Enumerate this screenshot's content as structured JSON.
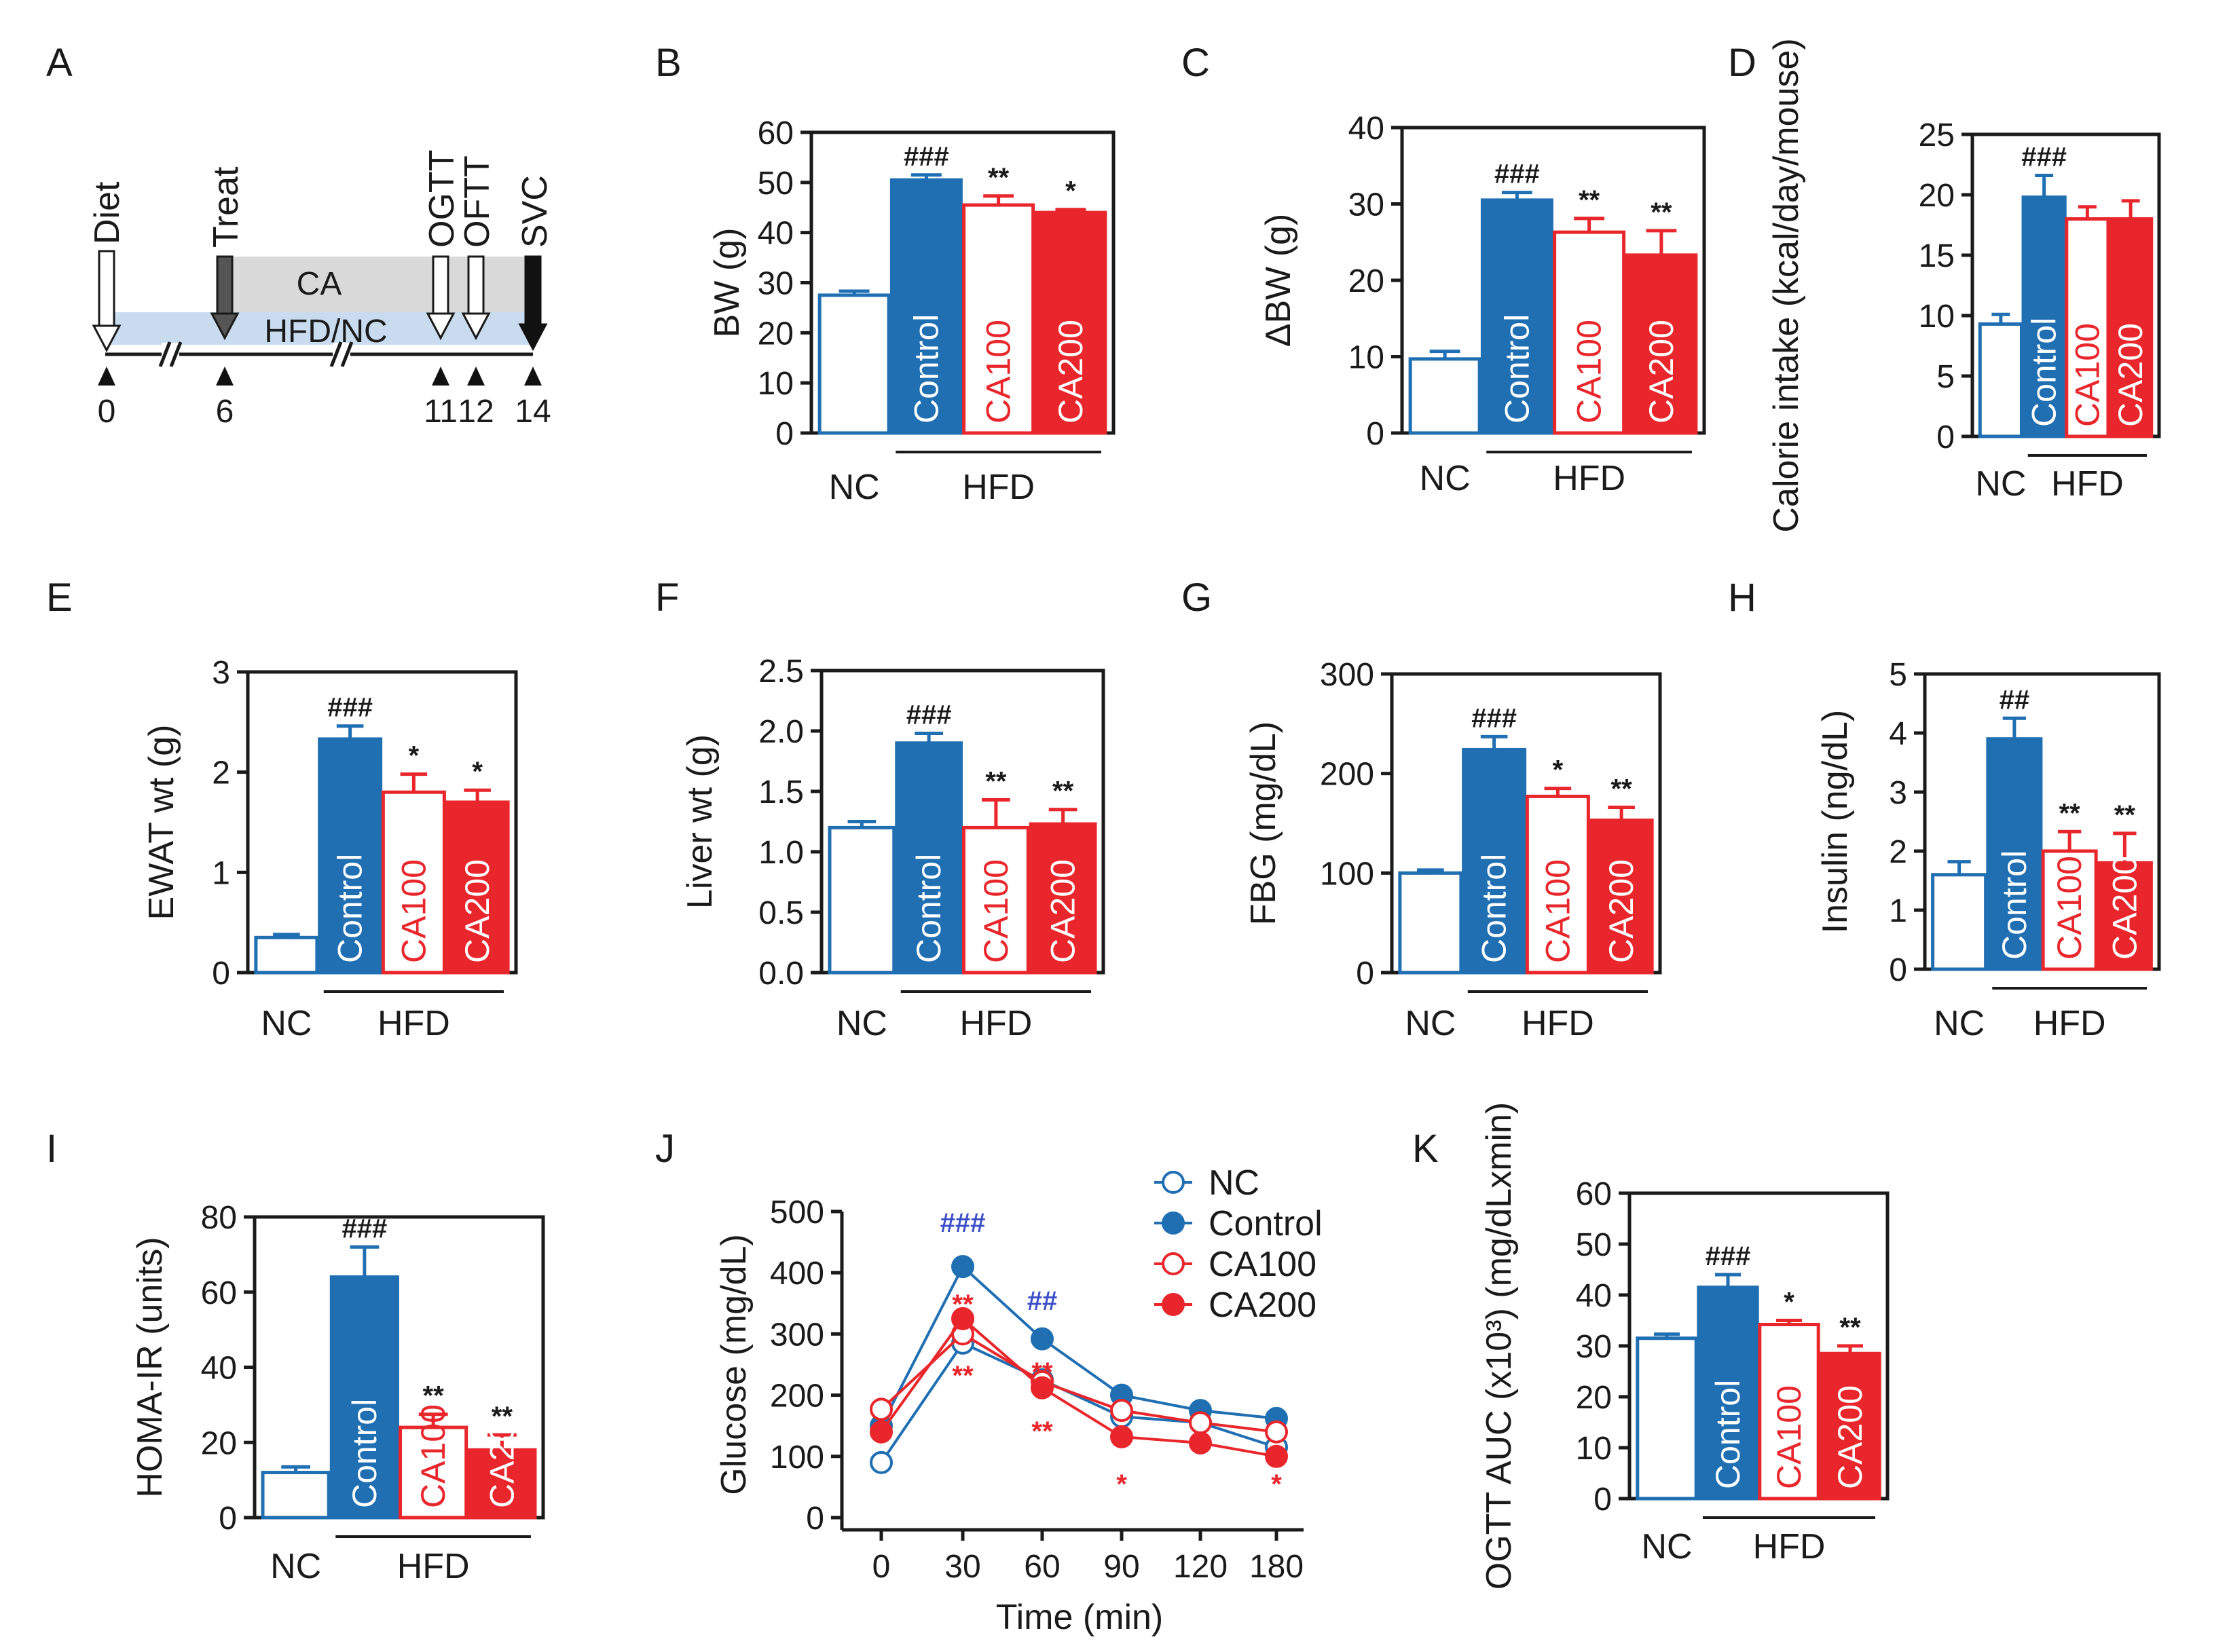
{
  "colors": {
    "nc": "#1f6fb2",
    "control": "#1f6fb2",
    "ca100": "#e8262b",
    "ca200": "#e8262b",
    "axis": "#1a1a1a",
    "ca_band": "#d9d9d9",
    "hfd_band": "#c9dcef",
    "sig_hash_blue": "#3b4ec8",
    "sig_red": "#e8262b"
  },
  "timeline": {
    "label": "A",
    "events": [
      "Diet",
      "Treat",
      "OGTT",
      "OFTT",
      "SVC"
    ],
    "bands": [
      "CA",
      "HFD/NC"
    ],
    "ticks": [
      "0",
      "6",
      "11",
      "12",
      "14"
    ]
  },
  "groups": {
    "nc": "NC",
    "hfd": "HFD"
  },
  "chart_data": [
    {
      "label": "B",
      "type": "bar",
      "ylabel": "BW (g)",
      "ylim": [
        0,
        60
      ],
      "yticks": [
        "0",
        "10",
        "20",
        "30",
        "40",
        "50",
        "60"
      ],
      "categories": [
        "NC",
        "Control",
        "CA100",
        "CA200"
      ],
      "values": [
        27.5,
        50.5,
        45.5,
        44
      ],
      "errors": [
        0.8,
        1.0,
        1.8,
        0.6
      ],
      "sig": [
        "",
        "###",
        "**",
        "*"
      ]
    },
    {
      "label": "C",
      "type": "bar",
      "ylabel": "ΔBW (g)",
      "ylim": [
        0,
        40
      ],
      "yticks": [
        "0",
        "10",
        "20",
        "30",
        "40"
      ],
      "categories": [
        "NC",
        "Control",
        "CA100",
        "CA200"
      ],
      "values": [
        9.7,
        30.5,
        26.3,
        23.3
      ],
      "errors": [
        1.0,
        1.0,
        1.8,
        3.2
      ],
      "sig": [
        "",
        "###",
        "**",
        "**"
      ]
    },
    {
      "label": "D",
      "type": "bar",
      "ylabel": "Calorie intake (kcal/day/mouse)",
      "ylim": [
        0,
        25
      ],
      "yticks": [
        "0",
        "5",
        "10",
        "15",
        "20",
        "25"
      ],
      "categories": [
        "NC",
        "Control",
        "CA100",
        "CA200"
      ],
      "values": [
        9.3,
        19.8,
        18.0,
        18.0
      ],
      "errors": [
        0.8,
        1.8,
        1.0,
        1.5
      ],
      "sig": [
        "",
        "###",
        "",
        ""
      ]
    },
    {
      "label": "E",
      "type": "bar",
      "ylabel": "EWAT wt (g)",
      "ylim": [
        0,
        3
      ],
      "yticks": [
        "0",
        "1",
        "2",
        "3"
      ],
      "categories": [
        "NC",
        "Control",
        "CA100",
        "CA200"
      ],
      "values": [
        0.35,
        2.33,
        1.8,
        1.7
      ],
      "errors": [
        0.03,
        0.13,
        0.18,
        0.12
      ],
      "sig": [
        "",
        "###",
        "*",
        "*"
      ]
    },
    {
      "label": "F",
      "type": "bar",
      "ylabel": "Liver wt (g)",
      "ylim": [
        0,
        2.5
      ],
      "yticks": [
        "0.0",
        "0.5",
        "1.0",
        "1.5",
        "2.0",
        "2.5"
      ],
      "categories": [
        "NC",
        "Control",
        "CA100",
        "CA200"
      ],
      "values": [
        1.2,
        1.9,
        1.2,
        1.23
      ],
      "errors": [
        0.05,
        0.08,
        0.23,
        0.12
      ],
      "sig": [
        "",
        "###",
        "**",
        "**"
      ]
    },
    {
      "label": "G",
      "type": "bar",
      "ylabel": "FBG (mg/dL)",
      "ylim": [
        0,
        300
      ],
      "yticks": [
        "0",
        "100",
        "200",
        "300"
      ],
      "categories": [
        "NC",
        "Control",
        "CA100",
        "CA200"
      ],
      "values": [
        100,
        224,
        177,
        153
      ],
      "errors": [
        3,
        13,
        8,
        13
      ],
      "sig": [
        "",
        "###",
        "*",
        "**"
      ]
    },
    {
      "label": "H",
      "type": "bar",
      "ylabel": "Insulin (ng/dL)",
      "ylim": [
        0,
        5
      ],
      "yticks": [
        "0",
        "1",
        "2",
        "3",
        "4",
        "5"
      ],
      "categories": [
        "NC",
        "Control",
        "CA100",
        "CA200"
      ],
      "values": [
        1.6,
        3.9,
        2.0,
        1.8
      ],
      "errors": [
        0.22,
        0.35,
        0.33,
        0.5
      ],
      "sig": [
        "",
        "##",
        "**",
        "**"
      ]
    },
    {
      "label": "I",
      "type": "bar",
      "ylabel": "HOMA-IR (units)",
      "ylim": [
        0,
        80
      ],
      "yticks": [
        "0",
        "20",
        "40",
        "60",
        "80"
      ],
      "categories": [
        "NC",
        "Control",
        "CA100",
        "CA200"
      ],
      "values": [
        12,
        64,
        24,
        18
      ],
      "errors": [
        1.5,
        8,
        3.5,
        4
      ],
      "sig": [
        "",
        "###",
        "**",
        "**"
      ]
    },
    {
      "label": "J",
      "type": "line",
      "ylabel": "Glucose (mg/dL)",
      "xlabel": "Time (min)",
      "ylim": [
        0,
        500
      ],
      "yticks": [
        "0",
        "100",
        "200",
        "300",
        "400",
        "500"
      ],
      "x": [
        0,
        30,
        60,
        90,
        120,
        180
      ],
      "xticks": [
        "0",
        "30",
        "60",
        "90",
        "120",
        "180"
      ],
      "series": [
        {
          "name": "NC",
          "values": [
            90,
            285,
            225,
            165,
            155,
            115
          ]
        },
        {
          "name": "Control",
          "values": [
            150,
            410,
            292,
            200,
            175,
            162
          ]
        },
        {
          "name": "CA100",
          "values": [
            177,
            300,
            222,
            175,
            155,
            140
          ]
        },
        {
          "name": "CA200",
          "values": [
            140,
            325,
            212,
            132,
            122,
            100
          ]
        }
      ],
      "annotations": [
        "###",
        "##",
        "**",
        "**",
        "**",
        "**",
        "*",
        "*"
      ]
    },
    {
      "label": "K",
      "type": "bar",
      "ylabel": "OGTT AUC (x10³) (mg/dLxmin)",
      "ylim": [
        0,
        60
      ],
      "yticks": [
        "0",
        "10",
        "20",
        "30",
        "40",
        "50",
        "60"
      ],
      "categories": [
        "NC",
        "Control",
        "CA100",
        "CA200"
      ],
      "values": [
        31.5,
        41.5,
        34.2,
        28.5
      ],
      "errors": [
        0.8,
        2.5,
        0.8,
        1.5
      ],
      "sig": [
        "",
        "###",
        "*",
        "**"
      ]
    }
  ]
}
